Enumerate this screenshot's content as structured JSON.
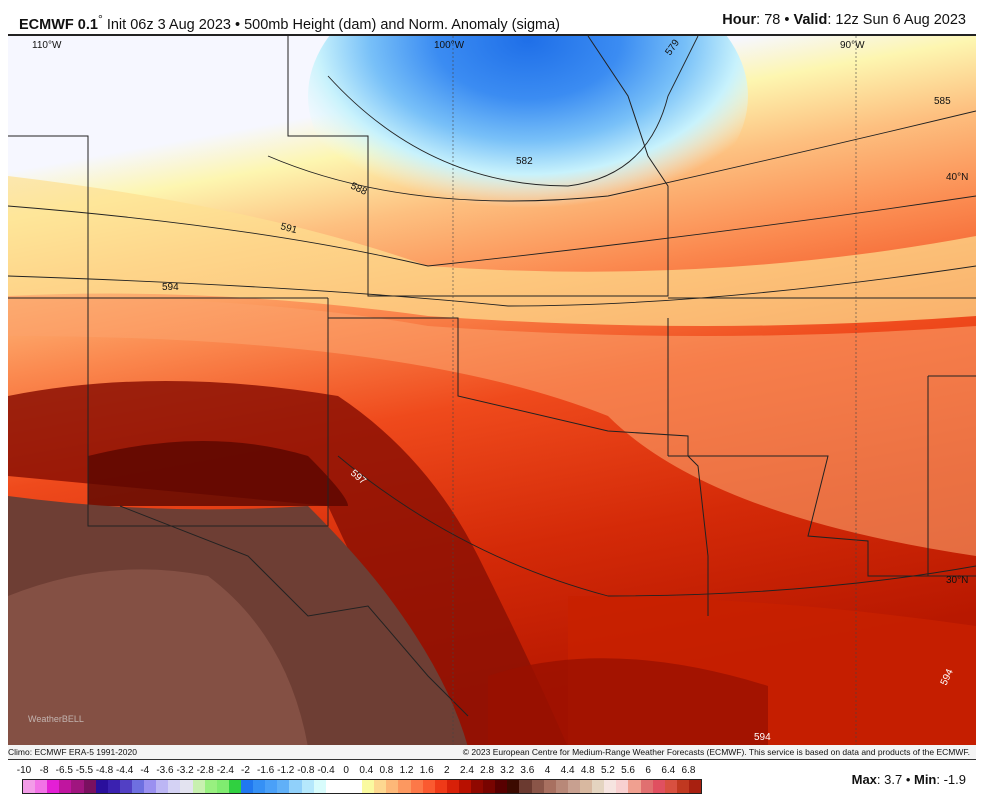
{
  "header": {
    "model": "ECMWF 0.1",
    "degree": "°",
    "init": " Init 06z 3 Aug 2023 • 500mb Height (dam) and Norm. Anomaly (sigma)",
    "hour_label": "Hour",
    "hour": ": 78 • ",
    "valid_label": "Valid",
    "valid": ": 12z Sun 6 Aug 2023"
  },
  "map": {
    "grid_labels": [
      "110°W",
      "100°W",
      "90°W",
      "40°N",
      "30°N"
    ],
    "contour_labels": [
      "579",
      "582",
      "585",
      "588",
      "591",
      "594",
      "597",
      "594",
      "594"
    ],
    "watermark": "WeatherBELL"
  },
  "credits": {
    "climo": "Climo: ECMWF ERA-5 1991-2020",
    "copyright": "© 2023 European Centre for Medium-Range Weather Forecasts (ECMWF). This service is based on data and products of the ECMWF."
  },
  "colorbar": {
    "ticks": [
      "-10",
      "-8",
      "-6.5",
      "-5.5",
      "-4.8",
      "-4.4",
      "-4",
      "-3.6",
      "-3.2",
      "-2.8",
      "-2.4",
      "-2",
      "-1.6",
      "-1.2",
      "-0.8",
      "-0.4",
      "0",
      "0.4",
      "0.8",
      "1.2",
      "1.6",
      "2",
      "2.4",
      "2.8",
      "3.2",
      "3.6",
      "4",
      "4.4",
      "4.8",
      "5.2",
      "5.6",
      "6",
      "6.4",
      "6.8"
    ],
    "colors": [
      "#f39ce8",
      "#f272e6",
      "#e41fd5",
      "#c0159f",
      "#a0157f",
      "#7a1060",
      "#2a0f9c",
      "#3a21b0",
      "#5240c4",
      "#6e6fe0",
      "#9a90f0",
      "#bcb6f4",
      "#d4d2f4",
      "#e3e3f0",
      "#c8f0b0",
      "#98f080",
      "#80ec70",
      "#30d040",
      "#2078f0",
      "#3590f5",
      "#4aa0f8",
      "#60b0f8",
      "#90d0fa",
      "#b5e8fc",
      "#d8fcfc",
      "#ffffff",
      "#ffffff",
      "#ffffff",
      "#fafaa0",
      "#fdd890",
      "#fdb878",
      "#fc9860",
      "#fc7848",
      "#fa5a30",
      "#ef3a18",
      "#d82008",
      "#b81000",
      "#900800",
      "#780400",
      "#580000",
      "#3c0a00",
      "#6b3a30",
      "#8a5548",
      "#a87060",
      "#b88878",
      "#c8a090",
      "#d8b8a0",
      "#e4d4c0",
      "#f6e4e0",
      "#f8d0d0",
      "#f0a090",
      "#e07070",
      "#e05060",
      "#d85040",
      "#c03820",
      "#a82010"
    ]
  },
  "stats": {
    "max_label": "Max",
    "max": ": 3.7 • ",
    "min_label": "Min",
    "min": ": -1.9"
  }
}
